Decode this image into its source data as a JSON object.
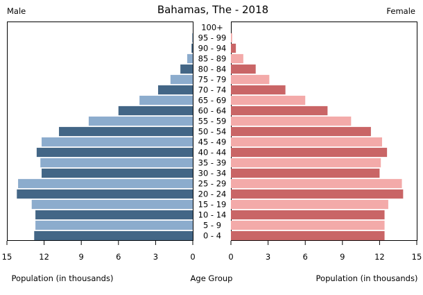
{
  "chart_data": {
    "type": "bar",
    "subtype": "population-pyramid",
    "title": "Bahamas, The - 2018",
    "left_label": "Male",
    "right_label": "Female",
    "xlabel_left": "Population (in thousands)",
    "xlabel_center": "Age Group",
    "xlabel_right": "Population (in thousands)",
    "xlim": [
      0,
      15
    ],
    "xticks_left": [
      "15",
      "12",
      "9",
      "6",
      "3",
      "0"
    ],
    "xticks_right": [
      "0",
      "3",
      "6",
      "9",
      "12",
      "15"
    ],
    "tick_values_left": [
      15,
      12,
      9,
      6,
      3,
      0
    ],
    "tick_values_right": [
      0,
      3,
      6,
      9,
      12,
      15
    ],
    "grid": false,
    "categories": [
      "100+",
      "95 - 99",
      "90 - 94",
      "85 - 89",
      "80 - 84",
      "75 - 79",
      "70 - 74",
      "65 - 69",
      "60 - 64",
      "55 - 59",
      "50 - 54",
      "45 - 49",
      "40 - 44",
      "35 - 39",
      "30 - 34",
      "25 - 29",
      "20 - 24",
      "15 - 19",
      "10 - 14",
      "5 - 9",
      "0 - 4"
    ],
    "series": [
      {
        "name": "Male",
        "values": [
          0.0,
          0.05,
          0.1,
          0.45,
          1.0,
          1.8,
          2.8,
          4.3,
          6.0,
          8.4,
          10.8,
          12.2,
          12.6,
          12.3,
          12.2,
          14.1,
          14.2,
          13.0,
          12.7,
          12.7,
          12.8
        ]
      },
      {
        "name": "Female",
        "values": [
          0.0,
          0.1,
          0.4,
          1.0,
          2.0,
          3.1,
          4.4,
          6.0,
          7.8,
          9.7,
          11.3,
          12.2,
          12.6,
          12.1,
          12.0,
          13.8,
          13.9,
          12.7,
          12.4,
          12.4,
          12.4
        ]
      }
    ],
    "colors": {
      "male_dark": "#436686",
      "male_light": "#8caccd",
      "female_dark": "#c96566",
      "female_light": "#f3aaa9",
      "axis": "#000000"
    }
  }
}
